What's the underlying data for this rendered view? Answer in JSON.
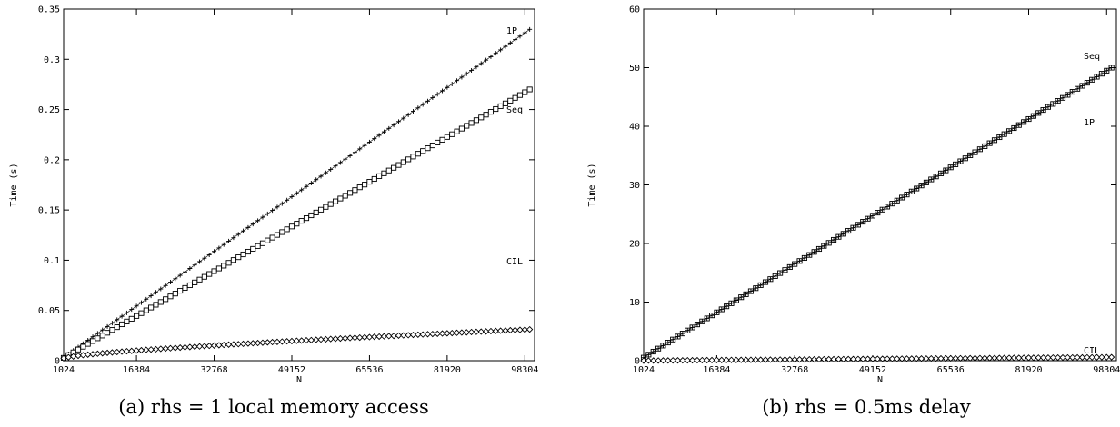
{
  "chart_data": [
    {
      "type": "line",
      "caption": "(a) rhs = 1 local memory access",
      "xlabel": "N",
      "ylabel": "Time (s)",
      "xlim": [
        1024,
        100352
      ],
      "ylim": [
        0,
        0.35
      ],
      "xticks": [
        1024,
        16384,
        32768,
        49152,
        65536,
        81920,
        98304
      ],
      "xtick_labels": [
        "1024",
        "16384",
        "32768",
        "49152",
        "65536",
        "81920",
        "98304"
      ],
      "yticks": [
        0,
        0.05,
        0.1,
        0.15,
        0.2,
        0.25,
        0.3,
        0.35
      ],
      "ytick_labels": [
        "0",
        "0.05",
        "0.1",
        "0.15",
        "0.2",
        "0.25",
        "0.3",
        "0.35"
      ],
      "grid": false,
      "x_start": 1024,
      "x_step": 1024,
      "series": [
        {
          "name": "1P",
          "marker": "plus",
          "values": [
            0.0034,
            0.0068,
            0.0102,
            0.0136,
            0.017,
            0.0204,
            0.0238,
            0.0272,
            0.0306,
            0.034,
            0.0374,
            0.0408,
            0.0442,
            0.0476,
            0.051,
            0.0544,
            0.0578,
            0.0612,
            0.0646,
            0.068,
            0.0714,
            0.0748,
            0.0782,
            0.0816,
            0.085,
            0.0884,
            0.0918,
            0.0952,
            0.0986,
            0.102,
            0.1054,
            0.1088,
            0.1122,
            0.1156,
            0.119,
            0.1224,
            0.1258,
            0.1292,
            0.1326,
            0.136,
            0.1394,
            0.1428,
            0.1462,
            0.1496,
            0.153,
            0.1564,
            0.1598,
            0.1632,
            0.1666,
            0.17,
            0.1734,
            0.1768,
            0.1802,
            0.1836,
            0.187,
            0.1904,
            0.1938,
            0.1972,
            0.2006,
            0.204,
            0.2074,
            0.2108,
            0.2142,
            0.2176,
            0.221,
            0.2244,
            0.2278,
            0.2312,
            0.2346,
            0.238,
            0.2414,
            0.2448,
            0.2482,
            0.2516,
            0.255,
            0.2584,
            0.2618,
            0.2652,
            0.2686,
            0.272,
            0.2754,
            0.2788,
            0.2822,
            0.2856,
            0.289,
            0.2924,
            0.2958,
            0.2992,
            0.3026,
            0.306,
            0.3094,
            0.3128,
            0.3162,
            0.3196,
            0.323,
            0.3264,
            0.3298
          ]
        },
        {
          "name": "Seq",
          "marker": "square",
          "values": [
            0.0028,
            0.0056,
            0.0083,
            0.0111,
            0.0139,
            0.0167,
            0.0195,
            0.0223,
            0.025,
            0.0278,
            0.0306,
            0.0334,
            0.0362,
            0.039,
            0.0417,
            0.0445,
            0.0473,
            0.0501,
            0.0529,
            0.0557,
            0.0584,
            0.0612,
            0.064,
            0.0668,
            0.0696,
            0.0724,
            0.0751,
            0.0779,
            0.0807,
            0.0835,
            0.0863,
            0.0891,
            0.0918,
            0.0946,
            0.0974,
            0.1002,
            0.103,
            0.1058,
            0.1085,
            0.1113,
            0.1141,
            0.1169,
            0.1197,
            0.1225,
            0.1252,
            0.128,
            0.1308,
            0.1336,
            0.1364,
            0.1392,
            0.1419,
            0.1447,
            0.1475,
            0.1503,
            0.1531,
            0.1559,
            0.1586,
            0.1614,
            0.1642,
            0.167,
            0.1698,
            0.1726,
            0.1753,
            0.1781,
            0.1809,
            0.1837,
            0.1865,
            0.1893,
            0.192,
            0.1948,
            0.1976,
            0.2004,
            0.2032,
            0.206,
            0.2087,
            0.2115,
            0.2143,
            0.2171,
            0.2199,
            0.2227,
            0.2254,
            0.2282,
            0.231,
            0.2338,
            0.2366,
            0.2394,
            0.2421,
            0.2449,
            0.2477,
            0.2505,
            0.2533,
            0.2561,
            0.2588,
            0.2616,
            0.2644,
            0.2672,
            0.27
          ]
        },
        {
          "name": "CIL",
          "marker": "diamond",
          "values": [
            0.0024,
            0.0034,
            0.0042,
            0.0049,
            0.0055,
            0.006,
            0.0065,
            0.007,
            0.0074,
            0.0078,
            0.0082,
            0.0086,
            0.009,
            0.0094,
            0.0097,
            0.0101,
            0.0104,
            0.0108,
            0.0111,
            0.0114,
            0.0118,
            0.0121,
            0.0124,
            0.0127,
            0.013,
            0.0133,
            0.0136,
            0.0139,
            0.0142,
            0.0145,
            0.0148,
            0.0151,
            0.0154,
            0.0157,
            0.016,
            0.0163,
            0.0165,
            0.0168,
            0.0171,
            0.0174,
            0.0176,
            0.0179,
            0.0182,
            0.0185,
            0.0187,
            0.019,
            0.0193,
            0.0195,
            0.0198,
            0.02,
            0.0203,
            0.0205,
            0.0208,
            0.0211,
            0.0213,
            0.0216,
            0.0218,
            0.0221,
            0.0223,
            0.0226,
            0.0228,
            0.023,
            0.0233,
            0.0235,
            0.0238,
            0.024,
            0.0243,
            0.0245,
            0.0247,
            0.025,
            0.0252,
            0.0254,
            0.0257,
            0.0259,
            0.0261,
            0.0264,
            0.0266,
            0.0268,
            0.0271,
            0.0273,
            0.0275,
            0.0278,
            0.028,
            0.0282,
            0.0285,
            0.0287,
            0.0289,
            0.0291,
            0.0294,
            0.0296,
            0.0298,
            0.03,
            0.0303,
            0.0305,
            0.0307,
            0.0309,
            0.0311
          ]
        }
      ]
    },
    {
      "type": "line",
      "caption": "(b) rhs = 0.5ms delay",
      "xlabel": "N",
      "ylabel": "Time (s)",
      "xlim": [
        1024,
        100352
      ],
      "ylim": [
        0,
        60
      ],
      "xticks": [
        1024,
        16384,
        32768,
        49152,
        65536,
        81920,
        98304
      ],
      "xtick_labels": [
        "1024",
        "16384",
        "32768",
        "49152",
        "65536",
        "81920",
        "98304"
      ],
      "yticks": [
        0,
        10,
        20,
        30,
        40,
        50,
        60
      ],
      "ytick_labels": [
        "0",
        "10",
        "20",
        "30",
        "40",
        "50",
        "60"
      ],
      "grid": false,
      "x_start": 1024,
      "x_step": 1024,
      "series": [
        {
          "name": "Seq",
          "marker": "square",
          "values": [
            0.515,
            1.031,
            1.546,
            2.062,
            2.577,
            3.093,
            3.608,
            4.124,
            4.639,
            5.155,
            5.67,
            6.186,
            6.701,
            7.216,
            7.732,
            8.247,
            8.763,
            9.278,
            9.794,
            10.309,
            10.825,
            11.34,
            11.856,
            12.371,
            12.887,
            13.402,
            13.918,
            14.433,
            14.948,
            15.464,
            15.979,
            16.495,
            17.01,
            17.526,
            18.041,
            18.557,
            19.072,
            19.588,
            20.103,
            20.619,
            21.134,
            21.649,
            22.165,
            22.68,
            23.196,
            23.711,
            24.227,
            24.742,
            25.258,
            25.773,
            26.289,
            26.804,
            27.32,
            27.835,
            28.351,
            28.866,
            29.381,
            29.897,
            30.412,
            30.928,
            31.443,
            31.959,
            32.474,
            32.99,
            33.505,
            34.021,
            34.536,
            35.052,
            35.567,
            36.082,
            36.598,
            37.113,
            37.629,
            38.144,
            38.66,
            39.175,
            39.691,
            40.206,
            40.722,
            41.237,
            41.753,
            42.268,
            42.784,
            43.299,
            43.814,
            44.33,
            44.845,
            45.361,
            45.876,
            46.392,
            46.907,
            47.423,
            47.938,
            48.454,
            48.969,
            49.485,
            50.0
          ]
        },
        {
          "name": "1P",
          "marker": "plus",
          "values": [
            0.515,
            1.031,
            1.546,
            2.062,
            2.577,
            3.093,
            3.608,
            4.124,
            4.639,
            5.155,
            5.67,
            6.186,
            6.701,
            7.216,
            7.732,
            8.247,
            8.763,
            9.278,
            9.794,
            10.309,
            10.825,
            11.34,
            11.856,
            12.371,
            12.887,
            13.402,
            13.918,
            14.433,
            14.948,
            15.464,
            15.979,
            16.495,
            17.01,
            17.526,
            18.041,
            18.557,
            19.072,
            19.588,
            20.103,
            20.619,
            21.134,
            21.649,
            22.165,
            22.68,
            23.196,
            23.711,
            24.227,
            24.742,
            25.258,
            25.773,
            26.289,
            26.804,
            27.32,
            27.835,
            28.351,
            28.866,
            29.381,
            29.897,
            30.412,
            30.928,
            31.443,
            31.959,
            32.474,
            32.99,
            33.505,
            34.021,
            34.536,
            35.052,
            35.567,
            36.082,
            36.598,
            37.113,
            37.629,
            38.144,
            38.66,
            39.175,
            39.691,
            40.206,
            40.722,
            41.237,
            41.753,
            42.268,
            42.784,
            43.299,
            43.814,
            44.33,
            44.845,
            45.361,
            45.876,
            46.392,
            46.907,
            47.423,
            47.938,
            48.454,
            48.969,
            49.485,
            50.0
          ]
        },
        {
          "name": "CIL",
          "marker": "diamond",
          "values": [
            0.0062,
            0.0124,
            0.0186,
            0.0247,
            0.0309,
            0.0371,
            0.0433,
            0.0495,
            0.0557,
            0.0619,
            0.068,
            0.0742,
            0.0804,
            0.0866,
            0.0928,
            0.099,
            0.1052,
            0.1113,
            0.1175,
            0.1237,
            0.1299,
            0.1361,
            0.1423,
            0.1485,
            0.1546,
            0.1608,
            0.167,
            0.1732,
            0.1794,
            0.1856,
            0.1918,
            0.1979,
            0.2041,
            0.2103,
            0.2165,
            0.2227,
            0.2289,
            0.2351,
            0.2412,
            0.2474,
            0.2536,
            0.2598,
            0.266,
            0.2722,
            0.2784,
            0.2845,
            0.2907,
            0.2969,
            0.3031,
            0.3093,
            0.3155,
            0.3216,
            0.3278,
            0.334,
            0.3402,
            0.3464,
            0.3526,
            0.3588,
            0.3649,
            0.3711,
            0.3773,
            0.3835,
            0.3897,
            0.3959,
            0.4021,
            0.4082,
            0.4144,
            0.4206,
            0.4268,
            0.433,
            0.4392,
            0.4454,
            0.4515,
            0.4577,
            0.4639,
            0.4701,
            0.4763,
            0.4825,
            0.4887,
            0.4948,
            0.501,
            0.5072,
            0.5134,
            0.5196,
            0.5258,
            0.532,
            0.5381,
            0.5443,
            0.5505,
            0.5567,
            0.5629,
            0.5691,
            0.5753,
            0.5814,
            0.5876,
            0.5938,
            0.6
          ]
        }
      ]
    }
  ]
}
